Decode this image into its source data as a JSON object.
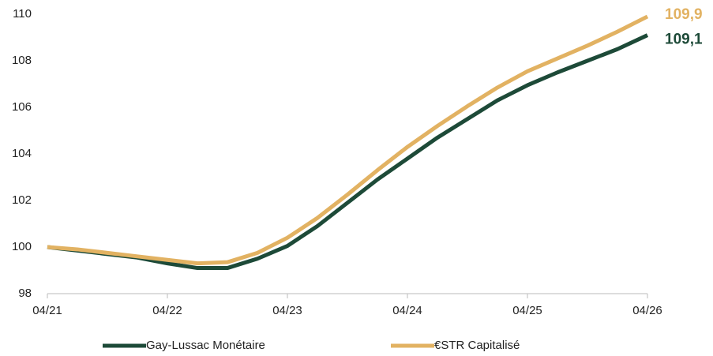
{
  "chart_data": {
    "type": "line",
    "categories": [
      "04/21",
      null,
      null,
      null,
      "04/22",
      null,
      null,
      null,
      "04/23",
      null,
      null,
      null,
      "04/24",
      null,
      null,
      null,
      "04/25",
      null,
      null,
      null,
      "04/26"
    ],
    "series": [
      {
        "name": "Gay-Lussac Monétaire",
        "color": "#1d4a38",
        "values": [
          100,
          99.85,
          99.7,
          99.55,
          99.3,
          99.1,
          99.1,
          99.5,
          100.05,
          100.9,
          101.9,
          102.9,
          103.8,
          104.7,
          105.5,
          106.3,
          106.95,
          107.5,
          108.0,
          108.5,
          109.1
        ],
        "value_labels": [
          null,
          null,
          null,
          null,
          null,
          null,
          null,
          null,
          null,
          null,
          null,
          null,
          null,
          null,
          null,
          null,
          null,
          null,
          null,
          null,
          "109,1"
        ]
      },
      {
        "name": "€STR Capitalisé",
        "color": "#e2b262",
        "values": [
          100,
          99.9,
          99.75,
          99.6,
          99.45,
          99.3,
          99.35,
          99.75,
          100.4,
          101.25,
          102.25,
          103.3,
          104.3,
          105.2,
          106.05,
          106.85,
          107.55,
          108.1,
          108.65,
          109.25,
          109.9
        ],
        "value_labels": [
          null,
          null,
          null,
          null,
          null,
          null,
          null,
          null,
          null,
          null,
          null,
          null,
          null,
          null,
          null,
          null,
          null,
          null,
          null,
          null,
          "109,9"
        ]
      }
    ],
    "ylim": [
      98,
      110
    ],
    "yticks": [
      98,
      100,
      102,
      104,
      106,
      108,
      110
    ],
    "grid": false,
    "legend": "bottom"
  }
}
